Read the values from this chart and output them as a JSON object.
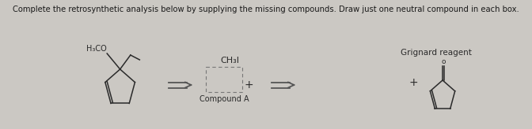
{
  "title": "Complete the retrosynthetic analysis below by supplying the missing compounds. Draw just one neutral compound in each box.",
  "title_fontsize": 7.2,
  "bg_color": "#cbc8c3",
  "text_color": "#1a1a1a",
  "label_h3co": "H₃CO",
  "label_ch3i": "CH₃I",
  "label_compound_a": "Compound A",
  "label_grignard": "Grignard reagent",
  "structure_color": "#2a2a2a",
  "arrow_color": "#555555"
}
